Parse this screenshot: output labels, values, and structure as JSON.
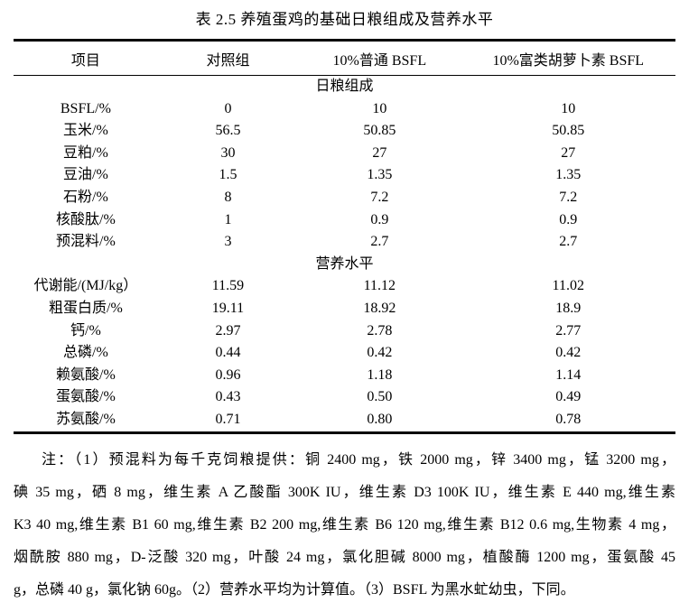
{
  "title": "表 2.5  养殖蛋鸡的基础日粮组成及营养水平",
  "colors": {
    "text": "#000000",
    "background": "#ffffff",
    "rule": "#000000"
  },
  "table": {
    "headers": [
      "项目",
      "对照组",
      "10%普通 BSFL",
      "10%富类胡萝卜素 BSFL"
    ],
    "sections": [
      {
        "name": "日粮组成",
        "rows": [
          {
            "item": "BSFL/%",
            "values": [
              "0",
              "10",
              "10"
            ]
          },
          {
            "item": "玉米/%",
            "values": [
              "56.5",
              "50.85",
              "50.85"
            ]
          },
          {
            "item": "豆粕/%",
            "values": [
              "30",
              "27",
              "27"
            ]
          },
          {
            "item": "豆油/%",
            "values": [
              "1.5",
              "1.35",
              "1.35"
            ]
          },
          {
            "item": "石粉/%",
            "values": [
              "8",
              "7.2",
              "7.2"
            ]
          },
          {
            "item": "核酸肽/%",
            "values": [
              "1",
              "0.9",
              "0.9"
            ]
          },
          {
            "item": "预混料/%",
            "values": [
              "3",
              "2.7",
              "2.7"
            ]
          }
        ]
      },
      {
        "name": "营养水平",
        "rows": [
          {
            "item": "代谢能/(MJ/kg）",
            "values": [
              "11.59",
              "11.12",
              "11.02"
            ]
          },
          {
            "item": "粗蛋白质/%",
            "values": [
              "19.11",
              "18.92",
              "18.9"
            ]
          },
          {
            "item": "钙/%",
            "values": [
              "2.97",
              "2.78",
              "2.77"
            ]
          },
          {
            "item": "总磷/%",
            "values": [
              "0.44",
              "0.42",
              "0.42"
            ]
          },
          {
            "item": "赖氨酸/%",
            "values": [
              "0.96",
              "1.18",
              "1.14"
            ]
          },
          {
            "item": "蛋氨酸/%",
            "values": [
              "0.43",
              "0.50",
              "0.49"
            ]
          },
          {
            "item": "苏氨酸/%",
            "values": [
              "0.71",
              "0.80",
              "0.78"
            ]
          }
        ]
      }
    ]
  },
  "notes": {
    "lines": [
      "注：（1）预混料为每千克饲粮提供：铜 2400 mg，铁 2000 mg，锌 3400 mg，锰 3200 mg，",
      "碘 35 mg，硒 8 mg，维生素 A 乙酸酯 300K IU，维生素 D3 100K IU，维生素 E 440 mg,维生素",
      "K3 40 mg,维生素 B1 60 mg,维生素 B2 200 mg,维生素 B6 120 mg,维生素 B12 0.6 mg,生物素 4 mg，",
      "烟酰胺 880 mg，D-泛酸 320 mg，叶酸 24 mg，氯化胆碱 8000 mg，植酸酶 1200 mg，蛋氨酸 45",
      "g，总磷 40 g，氯化钠 60g。（2）营养水平均为计算值。（3）BSFL 为黑水虻幼虫，下同。"
    ]
  }
}
